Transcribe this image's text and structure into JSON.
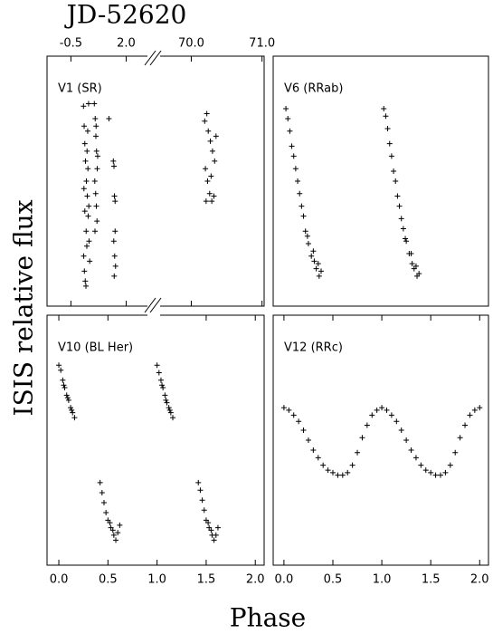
{
  "figure": {
    "ylabel": "ISIS relative flux",
    "xlabel": "Phase"
  },
  "chart_data": [
    {
      "type": "scatter",
      "title": "V1 (SR)",
      "xlabel": "JD-52620",
      "xtick_side": "top",
      "x_broken": true,
      "marker": "+",
      "color": "#000000",
      "xlim": [
        [
          -1.58,
          3.25
        ],
        [
          69.47,
          71.03
        ]
      ],
      "xticks": [
        -0.5,
        {
          "value": 2,
          "label": "2.0"
        },
        {
          "value": 70,
          "label": "70.0"
        },
        {
          "value": 71,
          "label": "71.0"
        }
      ],
      "ylim": [
        0,
        1
      ],
      "x": [
        0.07,
        0.1,
        0.13,
        0.16,
        0.2,
        0.24,
        0.28,
        0.32,
        0.08,
        0.11,
        0.15,
        0.19,
        0.23,
        0.27,
        0.31,
        0.35,
        0.09,
        0.13,
        0.18,
        0.22,
        0.26,
        0.3,
        0.56,
        0.6,
        0.63,
        0.66,
        0.69,
        0.58,
        0.62,
        0.65,
        0.68,
        0.71,
        0.59,
        0.64,
        1.22,
        1.42,
        1.45,
        1.47,
        1.5,
        1.44,
        1.48,
        1.52,
        1.46,
        1.5,
        70.19,
        70.22,
        70.24,
        70.27,
        70.3,
        70.33,
        70.2,
        70.23,
        70.26,
        70.29,
        70.32,
        70.21,
        70.35,
        70.28
      ],
      "values": [
        0.8,
        0.72,
        0.65,
        0.58,
        0.5,
        0.44,
        0.36,
        0.26,
        0.2,
        0.14,
        0.1,
        0.3,
        0.62,
        0.55,
        0.4,
        0.18,
        0.47,
        0.38,
        0.08,
        0.24,
        0.7,
        0.81,
        0.81,
        0.75,
        0.68,
        0.62,
        0.55,
        0.5,
        0.45,
        0.4,
        0.34,
        0.6,
        0.3,
        0.72,
        0.75,
        0.58,
        0.56,
        0.44,
        0.42,
        0.26,
        0.2,
        0.16,
        0.12,
        0.3,
        0.74,
        0.77,
        0.7,
        0.66,
        0.62,
        0.58,
        0.55,
        0.5,
        0.45,
        0.42,
        0.44,
        0.42,
        0.68,
        0.52
      ]
    },
    {
      "type": "scatter",
      "title": "V6 (RRab)",
      "marker": "+",
      "color": "#000000",
      "xlim": [
        -0.11,
        2.09
      ],
      "ylim": [
        0,
        1
      ],
      "x": [
        0.02,
        0.04,
        0.06,
        0.08,
        0.1,
        0.12,
        0.14,
        0.16,
        0.18,
        0.2,
        0.22,
        0.25,
        0.28,
        0.31,
        0.33,
        0.36,
        0.38,
        0.35,
        0.3,
        0.24,
        1.02,
        1.04,
        1.06,
        1.08,
        1.1,
        1.12,
        1.14,
        1.16,
        1.18,
        1.2,
        1.22,
        1.25,
        1.28,
        1.31,
        1.33,
        1.36,
        1.38,
        1.35,
        1.3,
        1.24
      ],
      "values": [
        0.79,
        0.75,
        0.7,
        0.64,
        0.6,
        0.55,
        0.5,
        0.45,
        0.4,
        0.36,
        0.3,
        0.25,
        0.2,
        0.18,
        0.15,
        0.12,
        0.14,
        0.17,
        0.22,
        0.28,
        0.79,
        0.76,
        0.71,
        0.65,
        0.6,
        0.54,
        0.5,
        0.44,
        0.4,
        0.35,
        0.31,
        0.26,
        0.21,
        0.17,
        0.15,
        0.12,
        0.13,
        0.16,
        0.21,
        0.27
      ]
    },
    {
      "type": "scatter",
      "title": "V10 (BL Her)",
      "marker": "+",
      "color": "#000000",
      "xlim": [
        -0.12,
        2.09
      ],
      "ylim": [
        0,
        1
      ],
      "xticks": [
        {
          "value": 0,
          "label": "0.0"
        },
        {
          "value": 0.5,
          "label": "0.5"
        },
        {
          "value": 1,
          "label": "1.0"
        },
        {
          "value": 1.5,
          "label": "1.5"
        },
        {
          "value": 2,
          "label": "2.0"
        }
      ],
      "x": [
        0.0,
        0.02,
        0.04,
        0.06,
        0.08,
        0.1,
        0.12,
        0.14,
        0.16,
        0.05,
        0.09,
        0.13,
        0.42,
        0.44,
        0.46,
        0.48,
        0.5,
        0.53,
        0.56,
        0.58,
        0.6,
        0.62,
        0.52,
        0.55,
        1.0,
        1.02,
        1.04,
        1.06,
        1.08,
        1.1,
        1.12,
        1.14,
        1.16,
        1.05,
        1.09,
        1.13,
        1.42,
        1.44,
        1.46,
        1.48,
        1.5,
        1.53,
        1.56,
        1.58,
        1.6,
        1.62,
        1.52,
        1.55
      ],
      "values": [
        0.8,
        0.78,
        0.74,
        0.71,
        0.68,
        0.66,
        0.63,
        0.61,
        0.59,
        0.72,
        0.67,
        0.62,
        0.33,
        0.29,
        0.25,
        0.21,
        0.18,
        0.15,
        0.12,
        0.1,
        0.13,
        0.16,
        0.17,
        0.14,
        0.8,
        0.77,
        0.74,
        0.71,
        0.68,
        0.65,
        0.63,
        0.61,
        0.59,
        0.72,
        0.66,
        0.62,
        0.33,
        0.3,
        0.26,
        0.22,
        0.18,
        0.15,
        0.12,
        0.1,
        0.12,
        0.15,
        0.17,
        0.14
      ]
    },
    {
      "type": "scatter",
      "title": "V12 (RRc)",
      "marker": "+",
      "color": "#000000",
      "xlim": [
        -0.11,
        2.09
      ],
      "ylim": [
        0,
        1
      ],
      "xticks": [
        {
          "value": 0,
          "label": "0.0"
        },
        {
          "value": 0.5,
          "label": "0.5"
        },
        {
          "value": 1,
          "label": "1.0"
        },
        {
          "value": 1.5,
          "label": "1.5"
        },
        {
          "value": 2,
          "label": "2.0"
        }
      ],
      "x": [
        0.0,
        0.05,
        0.1,
        0.15,
        0.2,
        0.25,
        0.3,
        0.35,
        0.4,
        0.45,
        0.5,
        0.55,
        0.6,
        0.65,
        0.7,
        0.75,
        0.8,
        0.85,
        0.9,
        0.95,
        1.0,
        1.05,
        1.1,
        1.15,
        1.2,
        1.25,
        1.3,
        1.35,
        1.4,
        1.45,
        1.5,
        1.55,
        1.6,
        1.65,
        1.7,
        1.75,
        1.8,
        1.85,
        1.9,
        1.95,
        2.0
      ],
      "values": [
        0.63,
        0.62,
        0.6,
        0.575,
        0.54,
        0.5,
        0.46,
        0.43,
        0.4,
        0.38,
        0.37,
        0.36,
        0.36,
        0.37,
        0.4,
        0.45,
        0.51,
        0.56,
        0.6,
        0.62,
        0.63,
        0.62,
        0.6,
        0.575,
        0.54,
        0.5,
        0.46,
        0.43,
        0.4,
        0.38,
        0.37,
        0.36,
        0.36,
        0.37,
        0.4,
        0.45,
        0.51,
        0.56,
        0.6,
        0.62,
        0.63
      ]
    }
  ]
}
